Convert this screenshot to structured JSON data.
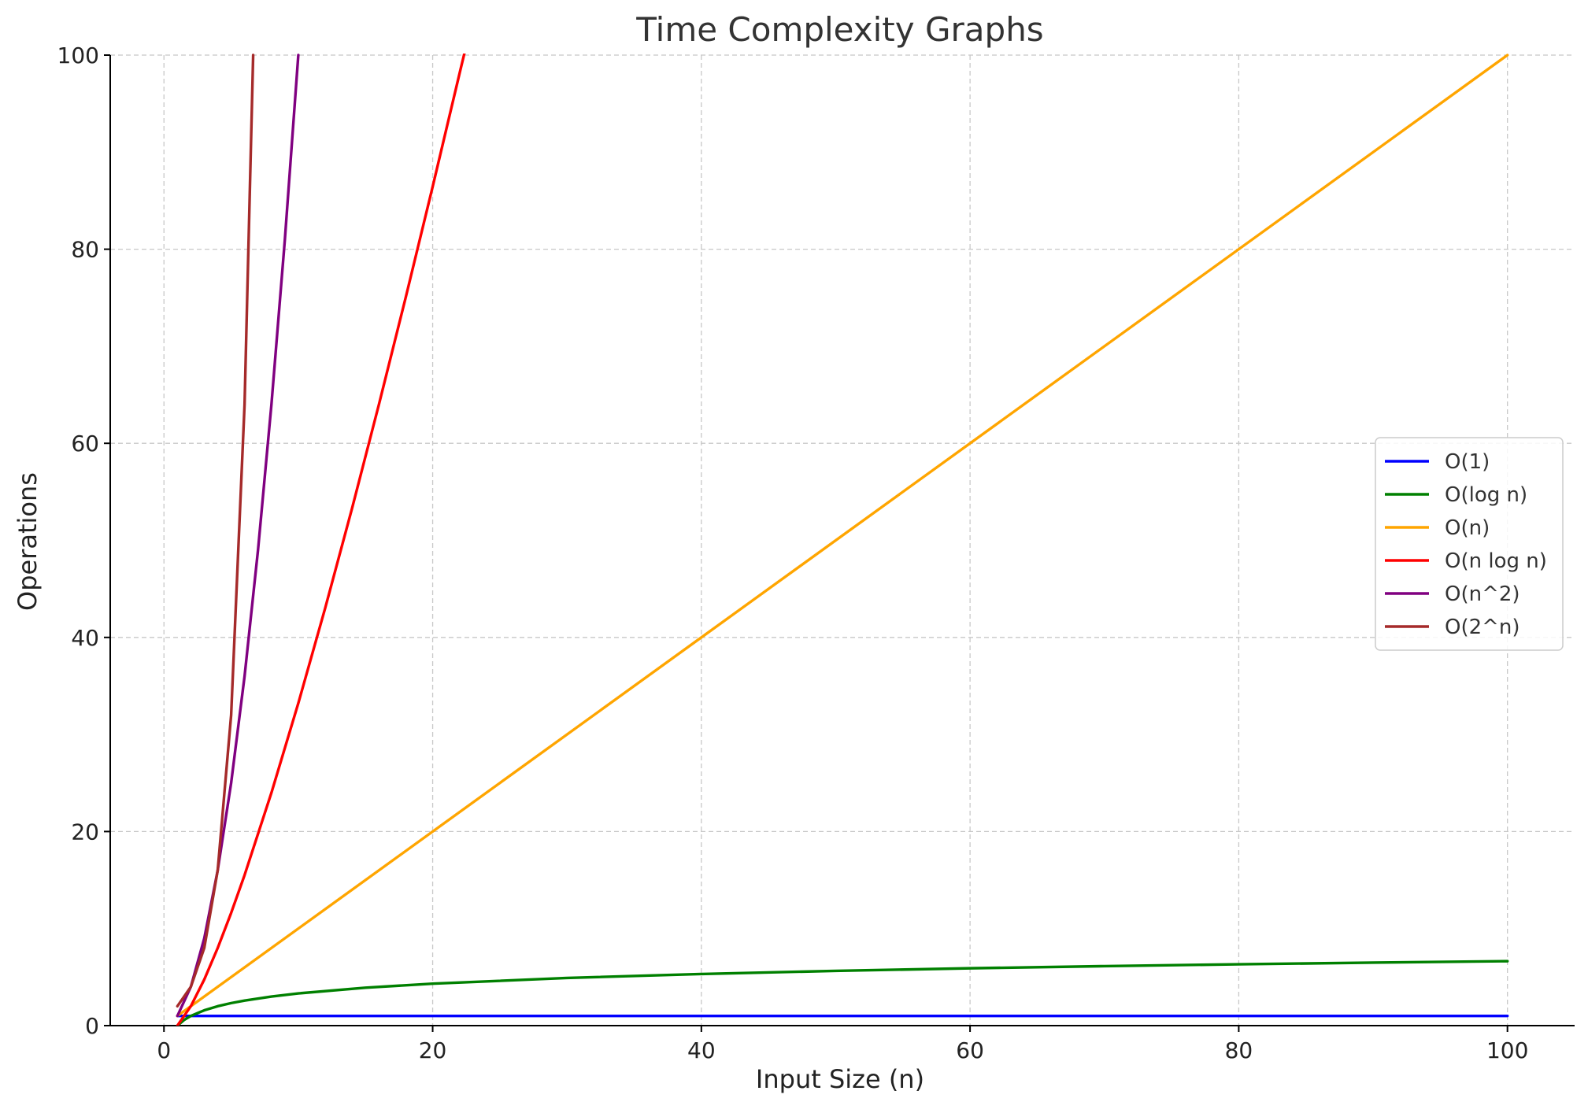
{
  "chart_data": {
    "type": "line",
    "title": "Time Complexity Graphs",
    "xlabel": "Input Size (n)",
    "ylabel": "Operations",
    "xlim": [
      -4,
      105
    ],
    "ylim": [
      0,
      100
    ],
    "xticks": [
      0,
      20,
      40,
      60,
      80,
      100
    ],
    "yticks": [
      0,
      20,
      40,
      60,
      80,
      100
    ],
    "grid": true,
    "legend_position": "center-right",
    "series": [
      {
        "name": "O(1)",
        "color": "#0000ff",
        "x": [
          1,
          100
        ],
        "y": [
          1,
          1
        ]
      },
      {
        "name": "O(log n)",
        "color": "#008000",
        "x": [
          1,
          1.5,
          2,
          3,
          4,
          5,
          6,
          8,
          10,
          15,
          20,
          30,
          40,
          50,
          60,
          70,
          80,
          90,
          100
        ],
        "y": [
          0,
          0.58,
          1,
          1.58,
          2,
          2.32,
          2.58,
          3,
          3.32,
          3.91,
          4.32,
          4.91,
          5.32,
          5.64,
          5.91,
          6.13,
          6.32,
          6.49,
          6.64
        ]
      },
      {
        "name": "O(n)",
        "color": "#ffa500",
        "x": [
          1,
          100
        ],
        "y": [
          1,
          100
        ]
      },
      {
        "name": "O(n log n)",
        "color": "#ff0000",
        "x": [
          1,
          2,
          3,
          4,
          5,
          6,
          8,
          10,
          12,
          14,
          16,
          18,
          20,
          22,
          22.4
        ],
        "y": [
          0,
          2,
          4.75,
          8,
          11.61,
          15.51,
          24,
          33.22,
          43.02,
          53.3,
          64,
          75.06,
          86.44,
          98.1,
          100.4
        ]
      },
      {
        "name": "O(n^2)",
        "color": "#800080",
        "x": [
          1,
          2,
          3,
          4,
          5,
          6,
          7,
          8,
          9,
          10
        ],
        "y": [
          1,
          4,
          9,
          16,
          25,
          36,
          49,
          64,
          81,
          100
        ]
      },
      {
        "name": "O(2^n)",
        "color": "#a52a2a",
        "x": [
          1,
          2,
          3,
          4,
          5,
          6,
          6.64
        ],
        "y": [
          2,
          4,
          8,
          16,
          32,
          64,
          100
        ]
      }
    ]
  }
}
